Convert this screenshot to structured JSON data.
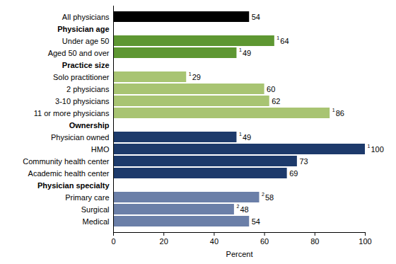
{
  "chart_data": {
    "type": "bar",
    "orientation": "horizontal",
    "data_labels": true,
    "grid": false,
    "x_label": "Percent",
    "categories": [
      "All physicians",
      "Physician age",
      "Under age 50",
      "Aged 50 and over",
      "Practice size",
      "Solo practitioner",
      "2 physicians",
      "3-10 physicians",
      "11 or more physicians",
      "Ownership",
      "Physician owned",
      "HMO",
      "Community health center",
      "Academic health center",
      "Physician specialty",
      "Primary care",
      "Surgical",
      "Medical"
    ],
    "values": [
      54,
      null,
      64,
      49,
      null,
      29,
      60,
      62,
      86,
      null,
      49,
      100,
      73,
      69,
      null,
      58,
      48,
      54
    ],
    "footnotes": [
      null,
      null,
      "1",
      "1",
      null,
      "1",
      null,
      null,
      "1",
      null,
      "1",
      "1",
      null,
      null,
      null,
      "2",
      "2",
      null
    ],
    "colors": [
      "#000000",
      null,
      "#5e9732",
      "#5e9732",
      null,
      "#a8c472",
      "#a8c472",
      "#a8c472",
      "#a8c472",
      null,
      "#1d3a6b",
      "#1d3a6b",
      "#1d3a6b",
      "#1d3a6b",
      null,
      "#6b7fa8",
      "#6b7fa8",
      "#6b7fa8"
    ],
    "xlim": [
      0,
      100
    ],
    "xticks": [
      0,
      20,
      40,
      60,
      80,
      100
    ]
  }
}
